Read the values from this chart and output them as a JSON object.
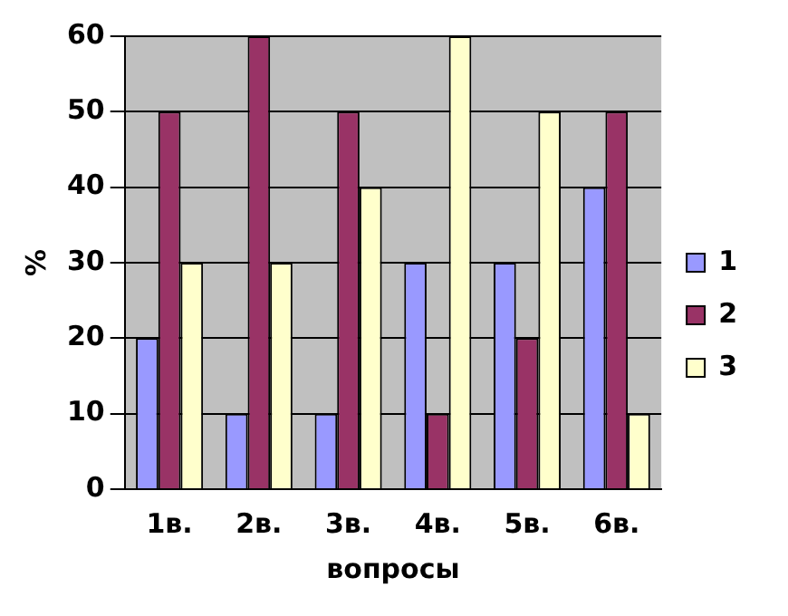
{
  "chart_data": {
    "type": "bar",
    "xlabel": "вопросы",
    "ylabel": "%",
    "categories": [
      "1в.",
      "2в.",
      "3в.",
      "4в.",
      "5в.",
      "6в."
    ],
    "series": [
      {
        "name": "1",
        "color": "#9999ff",
        "values": [
          20,
          10,
          10,
          30,
          30,
          40
        ]
      },
      {
        "name": "2",
        "color": "#993366",
        "values": [
          50,
          60,
          50,
          10,
          20,
          50
        ]
      },
      {
        "name": "3",
        "color": "#ffffcc",
        "values": [
          30,
          30,
          40,
          60,
          50,
          10
        ]
      }
    ],
    "ylim": [
      0,
      60
    ],
    "yticks": [
      0,
      10,
      20,
      30,
      40,
      50,
      60
    ],
    "grid": "y",
    "legend": "right"
  }
}
